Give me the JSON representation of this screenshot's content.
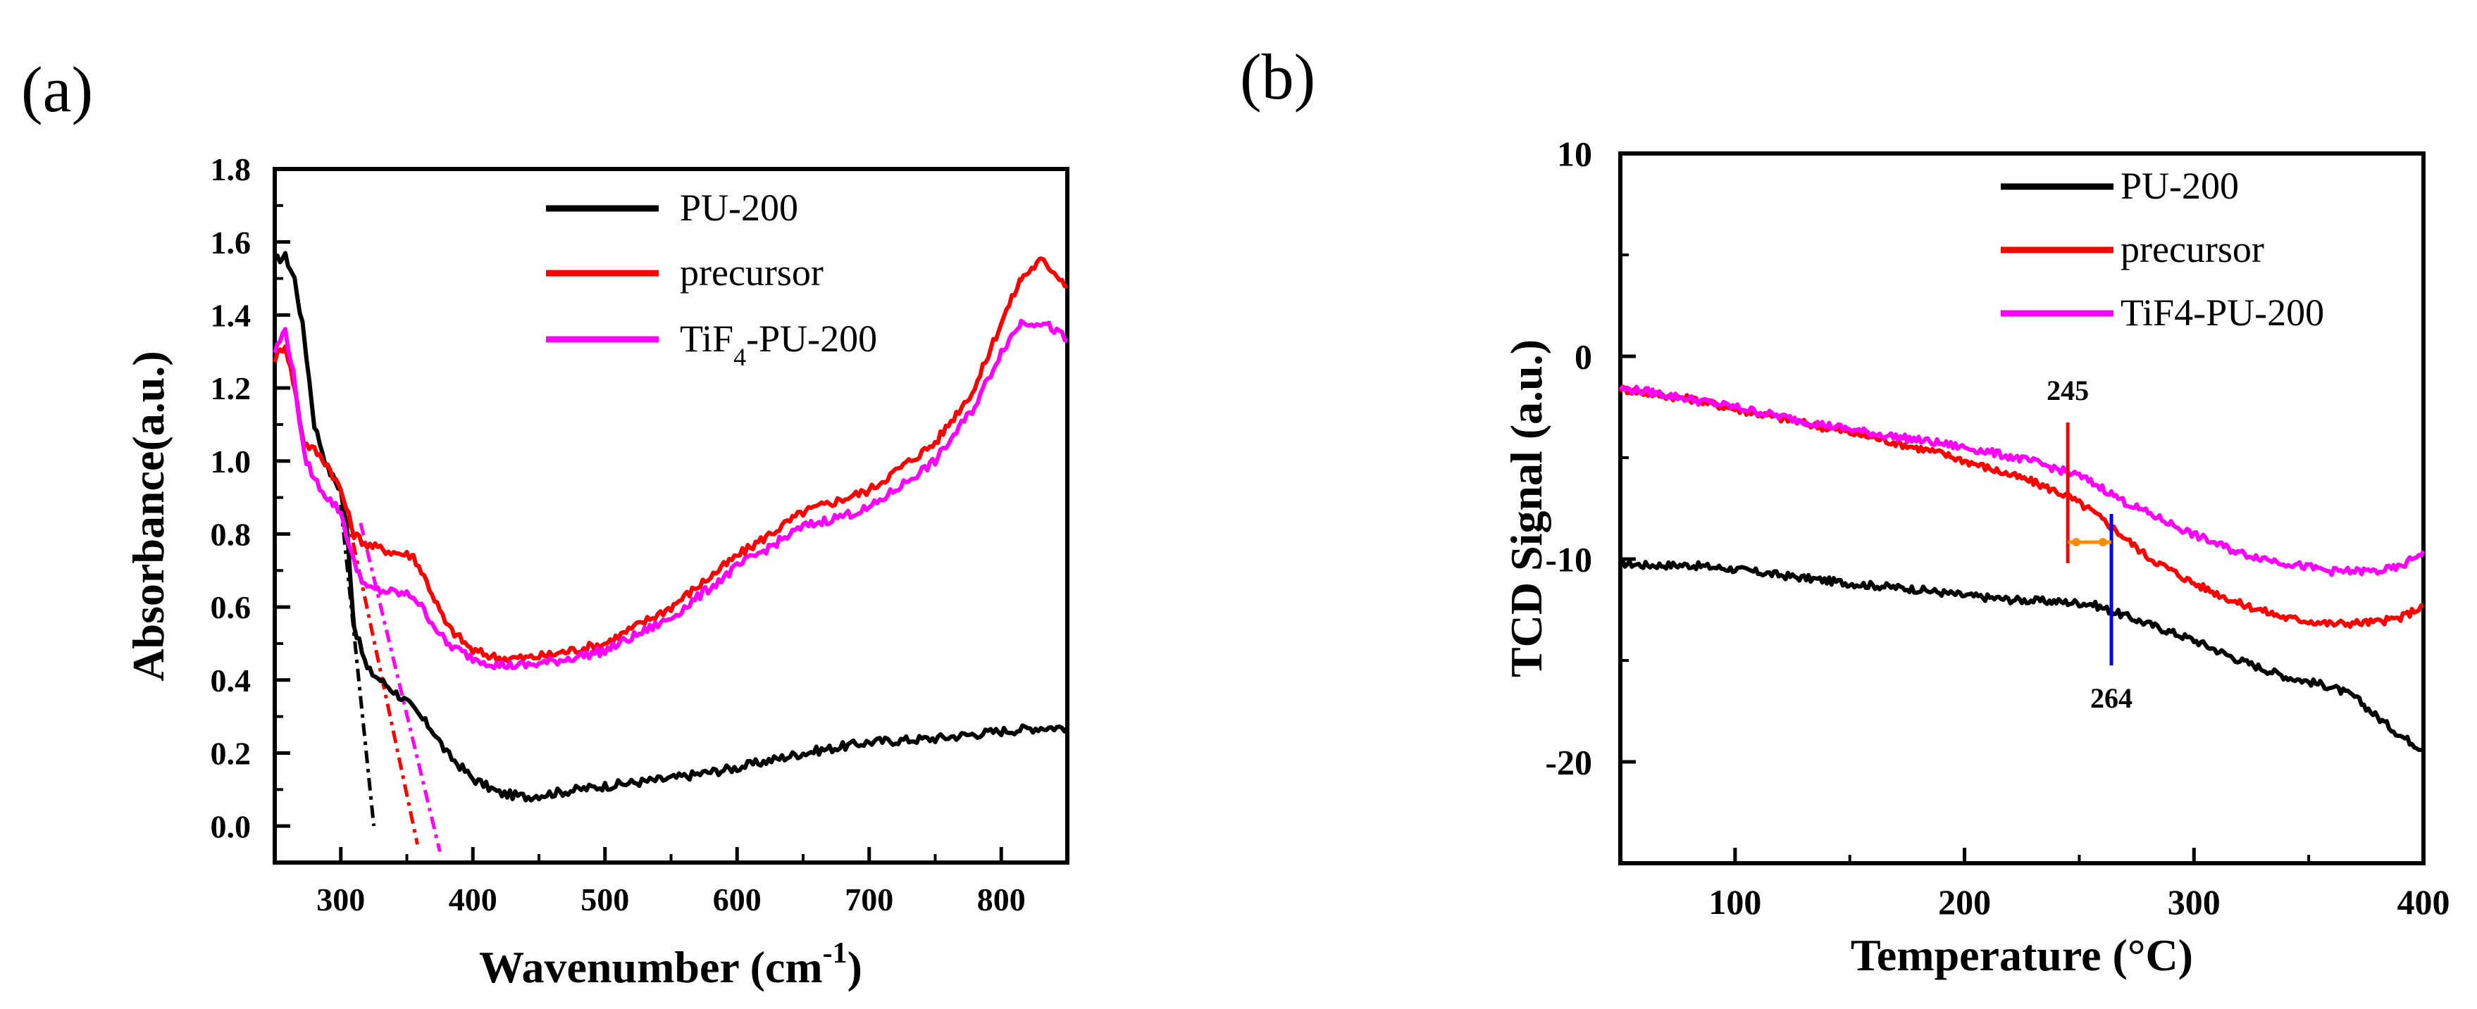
{
  "panels": {
    "a": {
      "label": "(a)"
    },
    "b": {
      "label": "(b)"
    }
  },
  "chart_data": [
    {
      "id": "a",
      "type": "line",
      "xlabel": "Wavenumber (cm",
      "xlabel_sup": "-1",
      "xlabel_end": ")",
      "ylabel": "Absorbance(a.u.)",
      "xlim": [
        250,
        850
      ],
      "ylim": [
        -0.1,
        1.8
      ],
      "xticks": [
        300,
        400,
        500,
        600,
        700,
        800
      ],
      "yticks": [
        0.0,
        0.2,
        0.4,
        0.6,
        0.8,
        1.0,
        1.2,
        1.4,
        1.6,
        1.8
      ],
      "ytick_labels": [
        "0.0",
        "0.2",
        "0.4",
        "0.6",
        "0.8",
        "1.0",
        "1.2",
        "1.4",
        "1.6",
        "1.8"
      ],
      "legend_position": "top-right",
      "series": [
        {
          "name": "PU-200",
          "legend_main": "PU-200",
          "color": "#000000",
          "x": [
            250,
            258,
            265,
            272,
            280,
            290,
            300,
            305,
            310,
            320,
            330,
            340,
            350,
            360,
            370,
            380,
            400,
            420,
            440,
            460,
            500,
            550,
            600,
            650,
            700,
            750,
            800,
            830,
            850
          ],
          "y": [
            1.55,
            1.56,
            1.5,
            1.35,
            1.1,
            0.98,
            0.92,
            0.8,
            0.55,
            0.43,
            0.4,
            0.37,
            0.34,
            0.3,
            0.26,
            0.2,
            0.13,
            0.09,
            0.08,
            0.09,
            0.11,
            0.13,
            0.16,
            0.2,
            0.23,
            0.24,
            0.26,
            0.27,
            0.27
          ]
        },
        {
          "name": "precursor",
          "legend_main": "precursor",
          "color": "#ff0000",
          "x": [
            250,
            258,
            265,
            272,
            280,
            290,
            300,
            310,
            320,
            340,
            355,
            365,
            380,
            400,
            420,
            440,
            460,
            500,
            550,
            600,
            650,
            700,
            750,
            780,
            800,
            815,
            830,
            840,
            850
          ],
          "y": [
            1.28,
            1.32,
            1.2,
            1.05,
            1.03,
            0.99,
            0.92,
            0.8,
            0.77,
            0.75,
            0.74,
            0.67,
            0.55,
            0.48,
            0.46,
            0.46,
            0.47,
            0.5,
            0.6,
            0.74,
            0.86,
            0.92,
            1.05,
            1.2,
            1.38,
            1.5,
            1.55,
            1.52,
            1.48
          ]
        },
        {
          "name": "TiF4-PU-200",
          "legend_main": "TiF",
          "legend_sub": "4",
          "legend_tail": "-PU-200",
          "color": "#ff00ff",
          "x": [
            250,
            258,
            265,
            272,
            280,
            290,
            300,
            310,
            320,
            340,
            355,
            365,
            380,
            400,
            420,
            440,
            460,
            500,
            550,
            600,
            650,
            700,
            750,
            780,
            800,
            815,
            830,
            840,
            850
          ],
          "y": [
            1.3,
            1.36,
            1.22,
            1.02,
            0.95,
            0.9,
            0.86,
            0.72,
            0.65,
            0.64,
            0.63,
            0.58,
            0.5,
            0.46,
            0.44,
            0.44,
            0.45,
            0.48,
            0.57,
            0.71,
            0.82,
            0.87,
            1.0,
            1.15,
            1.3,
            1.38,
            1.38,
            1.36,
            1.33
          ]
        }
      ],
      "tangents": [
        {
          "color": "#000000",
          "x": [
            300,
            325
          ],
          "y": [
            0.88,
            0.0
          ]
        },
        {
          "color": "#ff0000",
          "x": [
            305,
            358
          ],
          "y": [
            0.85,
            -0.05
          ]
        },
        {
          "color": "#ff00ff",
          "x": [
            315,
            375
          ],
          "y": [
            0.83,
            -0.07
          ]
        }
      ]
    },
    {
      "id": "b",
      "type": "line",
      "xlabel": "Temperature (°C)",
      "ylabel": "TCD Signal (a.u.)",
      "xlim": [
        50,
        400
      ],
      "ylim": [
        -25,
        10
      ],
      "xticks": [
        100,
        200,
        300,
        400
      ],
      "yticks": [
        10,
        0,
        -10,
        -20
      ],
      "ytick_labels": [
        "10",
        "0",
        "-10",
        "-20"
      ],
      "legend_position": "top-right",
      "series": [
        {
          "name": "PU-200",
          "color": "#000000",
          "x": [
            50,
            60,
            80,
            100,
            120,
            150,
            180,
            200,
            220,
            240,
            255,
            260,
            270,
            280,
            300,
            320,
            340,
            360,
            370,
            380,
            390,
            400
          ],
          "y": [
            -10.2,
            -10.3,
            -10.3,
            -10.5,
            -10.8,
            -11.2,
            -11.5,
            -11.8,
            -12.0,
            -12.1,
            -12.2,
            -12.4,
            -12.8,
            -13.2,
            -14.0,
            -15.0,
            -15.8,
            -16.3,
            -16.8,
            -17.8,
            -18.7,
            -19.4
          ]
        },
        {
          "name": "precursor",
          "color": "#ff0000",
          "x": [
            50,
            60,
            80,
            100,
            130,
            160,
            190,
            210,
            230,
            245,
            255,
            265,
            280,
            300,
            320,
            340,
            360,
            380,
            390,
            400
          ],
          "y": [
            -1.6,
            -1.8,
            -2.1,
            -2.6,
            -3.3,
            -4.0,
            -4.8,
            -5.5,
            -6.2,
            -6.9,
            -7.6,
            -8.5,
            -9.9,
            -11.2,
            -12.2,
            -12.9,
            -13.2,
            -13.1,
            -12.9,
            -12.3
          ]
        },
        {
          "name": "TiF4-PU-200",
          "color": "#ff00ff",
          "x": [
            50,
            60,
            80,
            100,
            130,
            160,
            190,
            210,
            230,
            250,
            260,
            270,
            285,
            300,
            320,
            340,
            360,
            380,
            390,
            400
          ],
          "y": [
            -1.6,
            -1.7,
            -2.1,
            -2.5,
            -3.2,
            -3.8,
            -4.3,
            -4.7,
            -5.2,
            -5.9,
            -6.5,
            -7.2,
            -8.0,
            -8.8,
            -9.7,
            -10.2,
            -10.6,
            -10.6,
            -10.4,
            -9.6
          ]
        }
      ],
      "annotations": [
        {
          "text": "245",
          "x": 245
        },
        {
          "text": "264",
          "x": 264
        }
      ]
    }
  ]
}
